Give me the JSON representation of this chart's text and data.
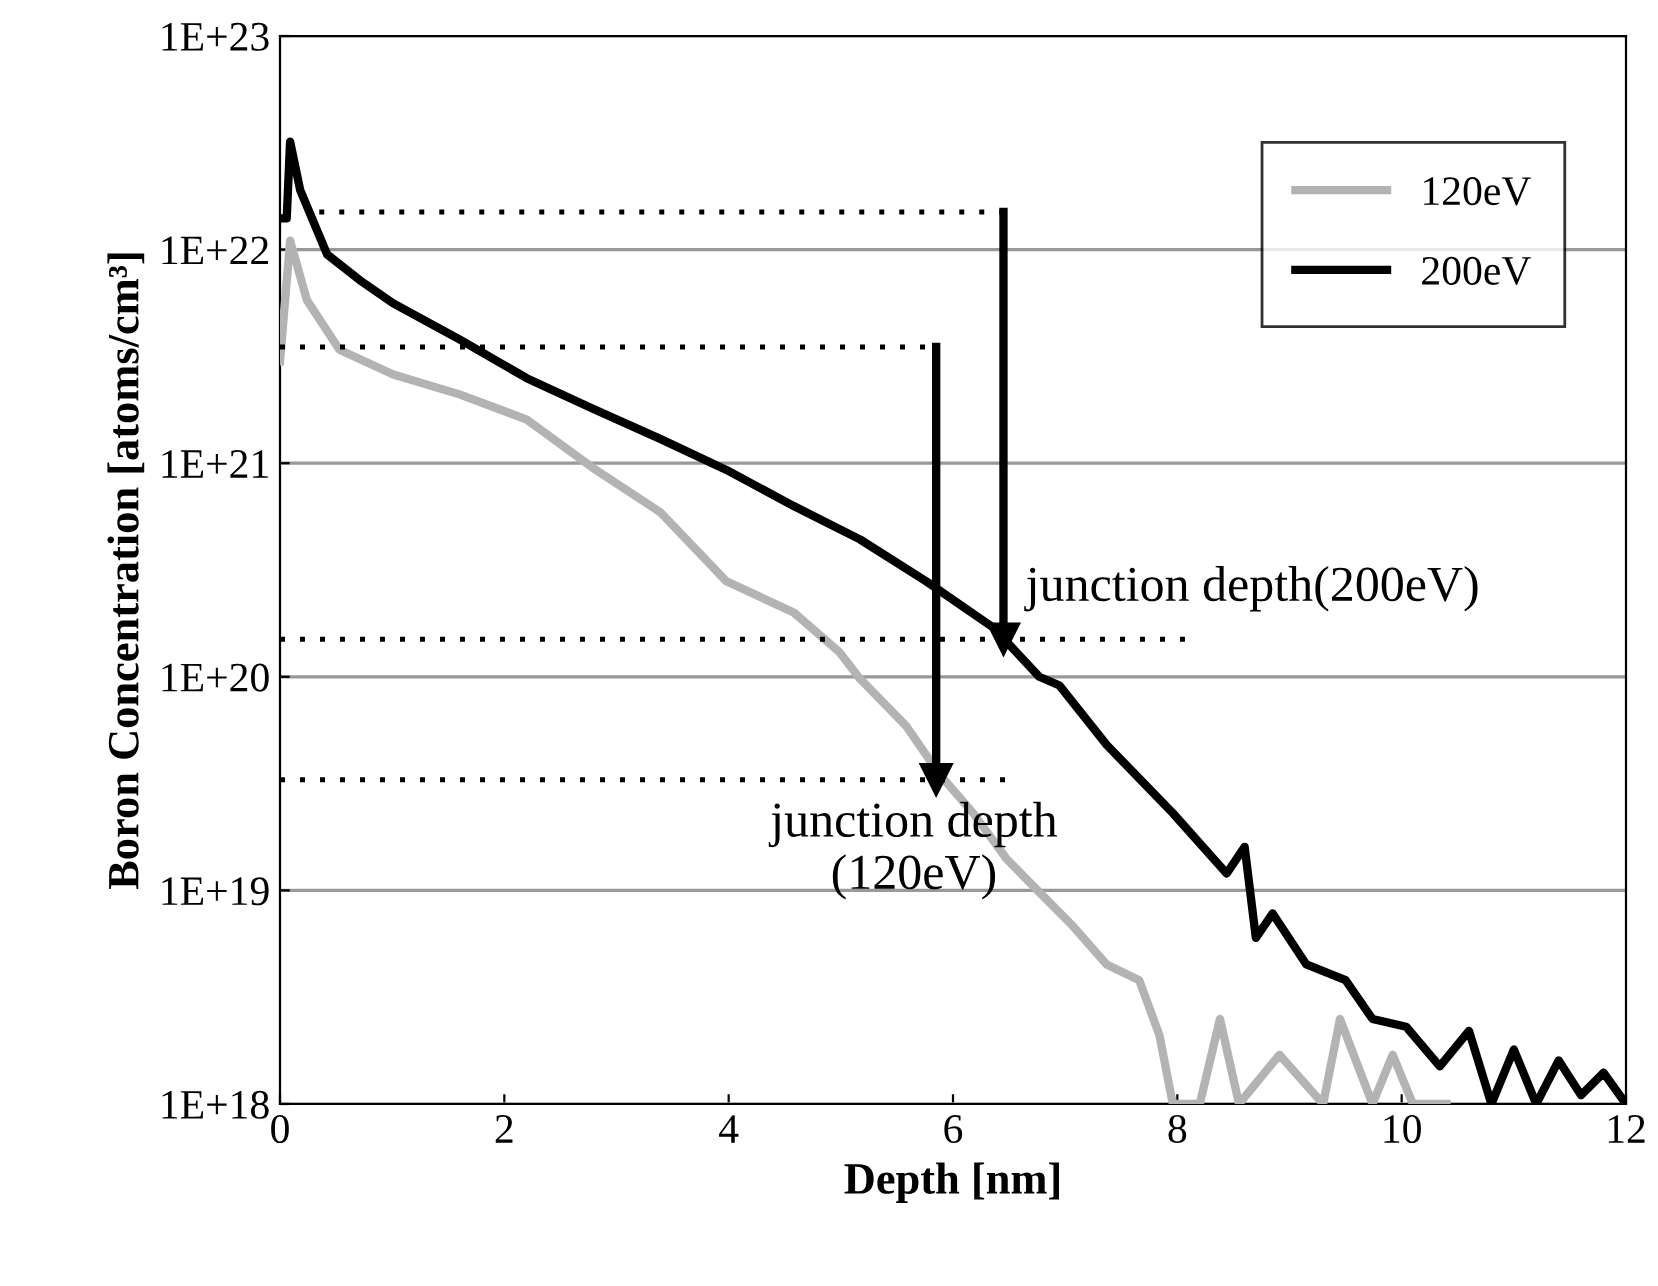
{
  "chart_data": {
    "type": "line",
    "xlabel": "Depth [nm]",
    "ylabel": "Boron Concentration [atoms/cm³]",
    "log": "y",
    "xlim": [
      0,
      12
    ],
    "xticks": [
      0,
      2,
      4,
      6,
      8,
      10,
      12
    ],
    "ylim": [
      1e+18,
      1e+23
    ],
    "yticks": [
      {
        "value": 1e+18,
        "label": "1E+18"
      },
      {
        "value": 1e+19,
        "label": "1E+19"
      },
      {
        "value": 1e+20,
        "label": "1E+20"
      },
      {
        "value": 1e+21,
        "label": "1E+21"
      },
      {
        "value": 1e+22,
        "label": "1E+22"
      },
      {
        "value": 1e+23,
        "label": "1E+23"
      }
    ],
    "grid": "y",
    "legend": "top right",
    "annotations": [
      {
        "text": "junction depth(200eV)",
        "x": 6.45,
        "y": 1.5e+20
      },
      {
        "text": "junction depth\n(120eV)",
        "x": 5.85,
        "y": 3.3e+19
      }
    ],
    "series": [
      {
        "name": "120eV",
        "color": "#b3b3b3",
        "line_style": "solid",
        "x": [
          0,
          0.09,
          0.24,
          0.53,
          1.01,
          1.6,
          2.2,
          2.79,
          3.39,
          3.98,
          4.58,
          4.99,
          5.17,
          5.58,
          5.88,
          6.18,
          6.48,
          6.77,
          7.07,
          7.37,
          7.66,
          7.84,
          7.96,
          8.2,
          8.38,
          8.55,
          8.91,
          9.3,
          9.45,
          9.74,
          9.92,
          10.1,
          10.4
        ],
        "values": [
          3e+21,
          1.1e+22,
          5.8e+21,
          3.4e+21,
          2.6e+21,
          2.1e+21,
          1.6e+21,
          9.5e+20,
          5.9e+20,
          2.8e+20,
          2e+20,
          1.3e+20,
          9.8e+19,
          5.9e+19,
          3.5e+19,
          2.3e+19,
          1.4e+19,
          9.8e+18,
          6.8e+18,
          4.5e+18,
          3.8e+18,
          2.1e+18,
          1e+18,
          1e+18,
          2.5e+18,
          1e+18,
          1.7e+18,
          1e+18,
          2.5e+18,
          1e+18,
          1.7e+18,
          1e+18,
          1e+18
        ]
      },
      {
        "name": "200eV",
        "color": "#000000",
        "line_style": "solid",
        "x": [
          0.0,
          0.06,
          0.09,
          0.18,
          0.42,
          0.71,
          1.01,
          1.6,
          2.2,
          2.79,
          3.39,
          3.98,
          4.58,
          5.17,
          5.76,
          6.36,
          6.77,
          6.95,
          7.37,
          7.96,
          8.44,
          8.6,
          8.7,
          8.85,
          9.15,
          9.5,
          9.74,
          10.04,
          10.34,
          10.6,
          10.8,
          11.0,
          11.2,
          11.4,
          11.6,
          11.8,
          12.0
        ],
        "values": [
          1.4e+22,
          1.4e+22,
          3.2e+22,
          1.9e+22,
          9.5e+21,
          7.2e+21,
          5.6e+21,
          3.8e+21,
          2.5e+21,
          1.8e+21,
          1.3e+21,
          9.3e+20,
          6.3e+20,
          4.4e+20,
          2.8e+20,
          1.7e+20,
          1e+20,
          9.1e+19,
          4.8e+19,
          2.3e+19,
          1.2e+19,
          1.6e+19,
          6e+18,
          7.8e+18,
          4.5e+18,
          3.8e+18,
          2.5e+18,
          2.3e+18,
          1.5e+18,
          2.2e+18,
          1e+18,
          1.8e+18,
          1e+18,
          1.6e+18,
          1.1e+18,
          1.4e+18,
          1e+18
        ]
      },
      {
        "color": "#000000",
        "line_style": "dotted",
        "x": [
          0.35,
          6.45
        ],
        "values": [
          1.5e+22,
          1.5e+22
        ]
      },
      {
        "color": "#000000",
        "line_style": "dotted",
        "x": [
          0,
          8.1
        ],
        "values": [
          1.5e+20,
          1.5e+20
        ]
      },
      {
        "color": "#000000",
        "line_style": "dotted",
        "x": [
          0,
          5.85
        ],
        "values": [
          3.5e+21,
          3.5e+21
        ]
      },
      {
        "color": "#000000",
        "line_style": "dotted",
        "x": [
          0,
          6.5
        ],
        "values": [
          3.3e+19,
          3.3e+19
        ]
      },
      {
        "color": "#000000",
        "line_style": "solid",
        "marker": "triangle",
        "x": [
          6.45,
          6.45
        ],
        "values": [
          1.5e+22,
          1.5e+20
        ]
      },
      {
        "color": "#000000",
        "line_style": "solid",
        "marker": "triangle",
        "x": [
          5.85,
          5.85
        ],
        "values": [
          3.5e+21,
          3.3e+19
        ]
      }
    ]
  }
}
